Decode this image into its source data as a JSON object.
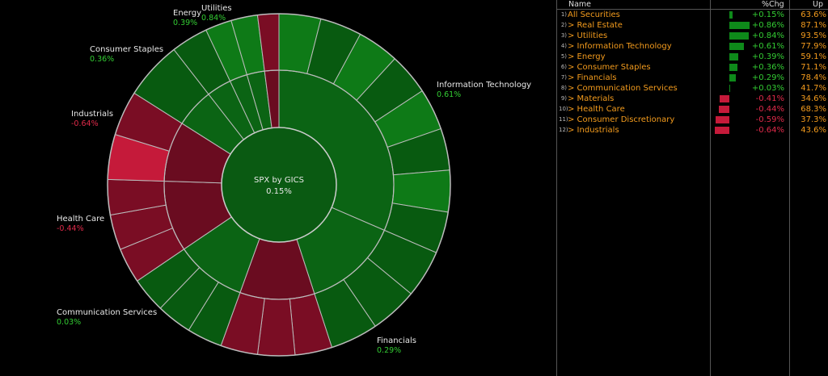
{
  "chart": {
    "center_title": "SPX by GICS",
    "center_value": "0.15%",
    "colors": {
      "pos": "#0e7a17",
      "pos_dark": "#085a10",
      "neg": "#7a0d24",
      "neg_bright": "#c51a3a",
      "center": "#0a5a12"
    }
  },
  "chart_data": {
    "type": "pie",
    "title": "SPX by GICS",
    "total_change": 0.15,
    "sectors": [
      {
        "name": "Information Technology",
        "value": "0.61%",
        "change": 0.61,
        "weight": 31.5
      },
      {
        "name": "Financials",
        "value": "0.29%",
        "change": 0.29,
        "weight": 13.5
      },
      {
        "name": "Consumer Discretionary",
        "change": -0.59,
        "weight": 10.5
      },
      {
        "name": "Communication Services",
        "value": "0.03%",
        "change": 0.03,
        "weight": 10.0
      },
      {
        "name": "Health Care",
        "value": "-0.44%",
        "change": -0.44,
        "weight": 10.0
      },
      {
        "name": "Industrials",
        "value": "-0.64%",
        "change": -0.64,
        "weight": 8.5
      },
      {
        "name": "Consumer Staples",
        "value": "0.36%",
        "change": 0.36,
        "weight": 5.5
      },
      {
        "name": "Energy",
        "value": "0.39%",
        "change": 0.39,
        "weight": 3.5
      },
      {
        "name": "Utilities",
        "value": "0.84%",
        "change": 0.84,
        "weight": 2.5
      },
      {
        "name": "Real Estate",
        "change": 0.86,
        "weight": 2.5
      },
      {
        "name": "Materials",
        "change": -0.41,
        "weight": 2.0
      }
    ]
  },
  "table": {
    "headers": {
      "name": "Name",
      "chg": "%Chg",
      "up": "Up"
    },
    "rows": [
      {
        "num": "1)",
        "name": "All Securities",
        "chg": "+0.15%",
        "up": "63.6%",
        "change": 0.15
      },
      {
        "num": "2)",
        "name": "> Real Estate",
        "chg": "+0.86%",
        "up": "87.1%",
        "change": 0.86
      },
      {
        "num": "3)",
        "name": "> Utilities",
        "chg": "+0.84%",
        "up": "93.5%",
        "change": 0.84
      },
      {
        "num": "4)",
        "name": "> Information Technology",
        "chg": "+0.61%",
        "up": "77.9%",
        "change": 0.61
      },
      {
        "num": "5)",
        "name": "> Energy",
        "chg": "+0.39%",
        "up": "59.1%",
        "change": 0.39
      },
      {
        "num": "6)",
        "name": "> Consumer Staples",
        "chg": "+0.36%",
        "up": "71.1%",
        "change": 0.36
      },
      {
        "num": "7)",
        "name": "> Financials",
        "chg": "+0.29%",
        "up": "78.4%",
        "change": 0.29
      },
      {
        "num": "8)",
        "name": "> Communication Services",
        "chg": "+0.03%",
        "up": "41.7%",
        "change": 0.03
      },
      {
        "num": "9)",
        "name": "> Materials",
        "chg": "-0.41%",
        "up": "34.6%",
        "change": -0.41
      },
      {
        "num": "10)",
        "name": "> Health Care",
        "chg": "-0.44%",
        "up": "68.3%",
        "change": -0.44
      },
      {
        "num": "11)",
        "name": "> Consumer Discretionary",
        "chg": "-0.59%",
        "up": "37.3%",
        "change": -0.59
      },
      {
        "num": "12)",
        "name": "> Industrials",
        "chg": "-0.64%",
        "up": "43.6%",
        "change": -0.64
      }
    ]
  }
}
